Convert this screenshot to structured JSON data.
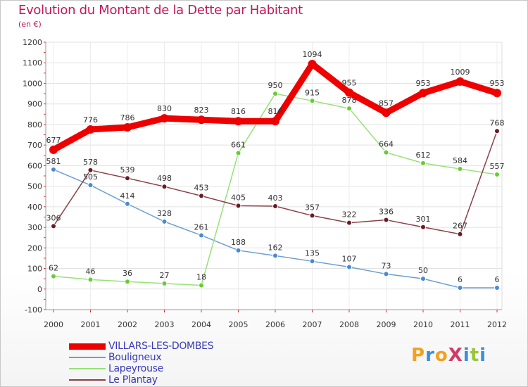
{
  "title": "Evolution du Montant de la Dette par Habitant",
  "subtitle": "(en €)",
  "logo": {
    "text": "ProXiti",
    "colors": [
      "#f4a020",
      "#3a8fd8",
      "#f4a020",
      "#d23a6a",
      "#3a8fd8",
      "#9ac43a",
      "#3a8fd8"
    ]
  },
  "chart_data": {
    "type": "line",
    "categories": [
      "2000",
      "2001",
      "2002",
      "2003",
      "2004",
      "2005",
      "2006",
      "2007",
      "2008",
      "2009",
      "2010",
      "2011",
      "2012"
    ],
    "ylim": [
      -100,
      1200
    ],
    "yticks": [
      -100,
      0,
      100,
      200,
      300,
      400,
      500,
      600,
      700,
      800,
      900,
      1000,
      1100,
      1200
    ],
    "grid": true,
    "legend_position": "bottom-left",
    "series": [
      {
        "name": "VILLARS-LES-DOMBES",
        "color": "#ee0000",
        "point_color": "#ee0000",
        "width": 9,
        "r": 6,
        "values": [
          677,
          776,
          786,
          830,
          823,
          816,
          816,
          1094,
          955,
          857,
          953,
          1009,
          953
        ]
      },
      {
        "name": "Bouligneux",
        "color": "#6a9fd0",
        "point_color": "#4a8ad0",
        "width": 1.5,
        "r": 3.5,
        "values": [
          581,
          505,
          414,
          328,
          261,
          188,
          162,
          135,
          107,
          73,
          50,
          6,
          6
        ]
      },
      {
        "name": "Lapeyrouse",
        "color": "#99e07a",
        "point_color": "#66cc33",
        "width": 1.5,
        "r": 3.5,
        "values": [
          62,
          46,
          36,
          27,
          18,
          661,
          950,
          915,
          878,
          664,
          612,
          584,
          557
        ]
      },
      {
        "name": "Le Plantay",
        "color": "#8a4048",
        "point_color": "#6a1a22",
        "width": 1.5,
        "r": 3.5,
        "values": [
          306,
          578,
          539,
          498,
          453,
          405,
          403,
          357,
          322,
          336,
          301,
          267,
          768
        ]
      }
    ]
  }
}
